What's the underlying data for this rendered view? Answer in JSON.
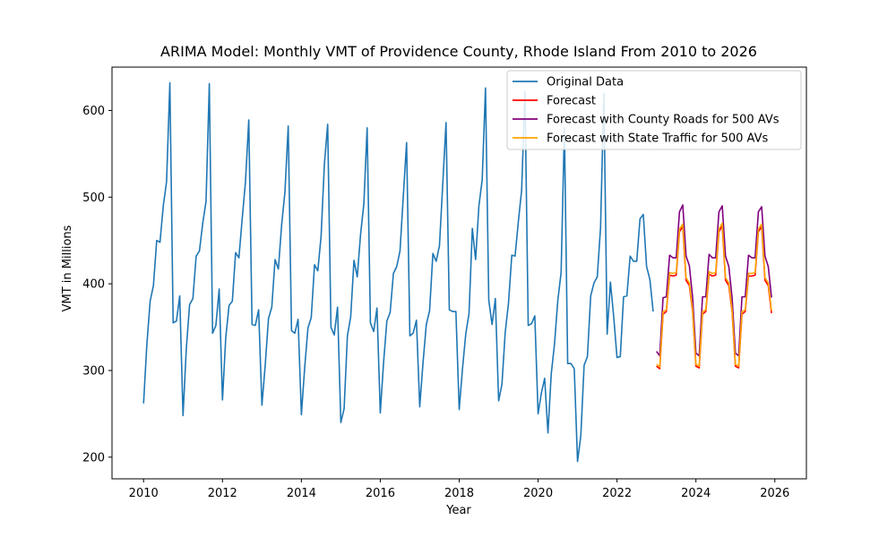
{
  "chart_data": {
    "type": "line",
    "title": "ARIMA Model: Monthly VMT of Providence County, Rhode Island From 2010 to 2026",
    "xlabel": "Year",
    "ylabel": "VMT in Millions",
    "xlim": [
      2009.2,
      2026.8
    ],
    "ylim": [
      175,
      650
    ],
    "xticks": [
      2010,
      2012,
      2014,
      2016,
      2018,
      2020,
      2022,
      2024,
      2026
    ],
    "yticks": [
      200,
      300,
      400,
      500,
      600
    ],
    "grid": false,
    "legend_position": "top-right",
    "series": [
      {
        "name": "Original Data",
        "color": "#1f77b4",
        "x_start": 2010,
        "step": 0.08333,
        "values": [
          262,
          330,
          380,
          398,
          450,
          448,
          490,
          518,
          632,
          355,
          357,
          386,
          248,
          325,
          376,
          383,
          432,
          438,
          470,
          495,
          631,
          343,
          352,
          394,
          266,
          338,
          375,
          380,
          436,
          430,
          475,
          518,
          589,
          353,
          352,
          370,
          260,
          306,
          360,
          373,
          428,
          417,
          468,
          506,
          582,
          346,
          343,
          359,
          249,
          303,
          349,
          361,
          422,
          415,
          455,
          538,
          584,
          350,
          341,
          373,
          240,
          256,
          340,
          362,
          427,
          408,
          457,
          492,
          580,
          355,
          345,
          372,
          251,
          309,
          357,
          367,
          412,
          420,
          438,
          501,
          563,
          340,
          343,
          358,
          258,
          309,
          353,
          369,
          435,
          426,
          444,
          515,
          586,
          370,
          368,
          368,
          255,
          302,
          342,
          366,
          464,
          428,
          490,
          520,
          626,
          381,
          353,
          383,
          265,
          284,
          344,
          378,
          433,
          432,
          472,
          508,
          622,
          352,
          354,
          363,
          250,
          274,
          291,
          228,
          296,
          331,
          381,
          413,
          580,
          308,
          308,
          302,
          195,
          225,
          306,
          316,
          386,
          401,
          408,
          465,
          620,
          342,
          402,
          362,
          315,
          316,
          385,
          386,
          432,
          426,
          426,
          475,
          480,
          420,
          405,
          368
        ]
      },
      {
        "name": "Forecast",
        "color": "#ff0000",
        "x_start": 2023.0,
        "step": 0.08333,
        "values": [
          305,
          302,
          365,
          368,
          410,
          409,
          410,
          460,
          466,
          404,
          398,
          368,
          305,
          303,
          365,
          368,
          411,
          409,
          410,
          460,
          467,
          404,
          398,
          368,
          305,
          303,
          365,
          368,
          409,
          409,
          410,
          460,
          466,
          404,
          398,
          366
        ]
      },
      {
        "name": "Forecast with County Roads for 500 AVs",
        "color": "#800080",
        "x_start": 2023.0,
        "step": 0.08333,
        "values": [
          322,
          317,
          384,
          385,
          433,
          430,
          430,
          483,
          491,
          432,
          421,
          384,
          320,
          317,
          385,
          385,
          434,
          430,
          430,
          483,
          490,
          432,
          420,
          384,
          320,
          317,
          385,
          385,
          433,
          430,
          430,
          483,
          489,
          432,
          420,
          384
        ]
      },
      {
        "name": "Forecast with State Traffic for 500 AVs",
        "color": "#ffa500",
        "x_start": 2023.0,
        "step": 0.08333,
        "values": [
          307,
          304,
          368,
          370,
          413,
          412,
          413,
          463,
          469,
          407,
          401,
          370,
          307,
          305,
          368,
          370,
          414,
          412,
          413,
          463,
          470,
          407,
          401,
          370,
          307,
          305,
          368,
          370,
          412,
          412,
          413,
          463,
          469,
          407,
          401,
          369
        ]
      }
    ]
  }
}
